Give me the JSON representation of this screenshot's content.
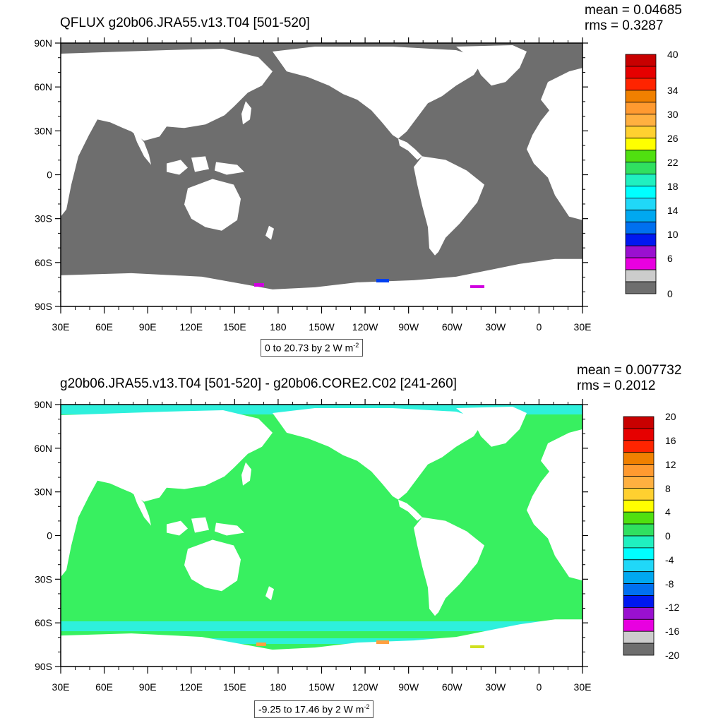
{
  "colors": {
    "land": "#ffffff",
    "ocean_top": "#6e6e6e",
    "ocean_bottom": "#38f060",
    "ice_bottom": "#2ef0dc",
    "frame": "#000000"
  },
  "panels": [
    {
      "id": "top",
      "title": "QFLUX g20b06.JRA55.v13.T04 [501-520]",
      "stats": {
        "mean": "mean = 0.04685",
        "rms": "rms = 0.3287"
      },
      "units": {
        "range": "0 to 20.73 by 2  W m",
        "exp": "-2"
      },
      "lat_labels": [
        "90N",
        "60N",
        "30N",
        "0",
        "30S",
        "60S",
        "90S"
      ],
      "lon_labels": [
        "30E",
        "60E",
        "90E",
        "120E",
        "150E",
        "180",
        "150W",
        "120W",
        "90W",
        "60W",
        "30W",
        "0",
        "30E"
      ],
      "colorbar": {
        "labels": [
          "40",
          "34",
          "30",
          "26",
          "22",
          "18",
          "14",
          "10",
          "6",
          "0"
        ],
        "colors": [
          "#c80000",
          "#e60000",
          "#ff2400",
          "#f08000",
          "#ff9a30",
          "#ffb040",
          "#ffd030",
          "#ffff00",
          "#50e010",
          "#30e060",
          "#20f0c0",
          "#00ffff",
          "#20d8f8",
          "#00a8f0",
          "#0070f0",
          "#0018f0",
          "#9a10d0",
          "#e800e0",
          "#cccccc",
          "#6e6e6e"
        ]
      }
    },
    {
      "id": "bottom",
      "title": "g20b06.JRA55.v13.T04 [501-520] - g20b06.CORE2.C02 [241-260]",
      "stats": {
        "mean": "mean = 0.007732",
        "rms": "rms = 0.2012"
      },
      "units": {
        "range": "-9.25 to 17.46 by 2  W m",
        "exp": "-2"
      },
      "lat_labels": [
        "90N",
        "60N",
        "30N",
        "0",
        "30S",
        "60S",
        "90S"
      ],
      "lon_labels": [
        "30E",
        "60E",
        "90E",
        "120E",
        "150E",
        "180",
        "150W",
        "120W",
        "90W",
        "60W",
        "30W",
        "0",
        "30E"
      ],
      "colorbar": {
        "labels": [
          "20",
          "16",
          "12",
          "8",
          "4",
          "0",
          "-4",
          "-8",
          "-12",
          "-16",
          "-20"
        ],
        "colors": [
          "#c80000",
          "#e60000",
          "#ff2400",
          "#f08000",
          "#ff9a30",
          "#ffb040",
          "#ffd030",
          "#ffff00",
          "#50e010",
          "#30e060",
          "#20f0c0",
          "#00ffff",
          "#20d8f8",
          "#00a8f0",
          "#0070f0",
          "#0018f0",
          "#9a10d0",
          "#e800e0",
          "#cccccc",
          "#6e6e6e"
        ]
      }
    }
  ]
}
